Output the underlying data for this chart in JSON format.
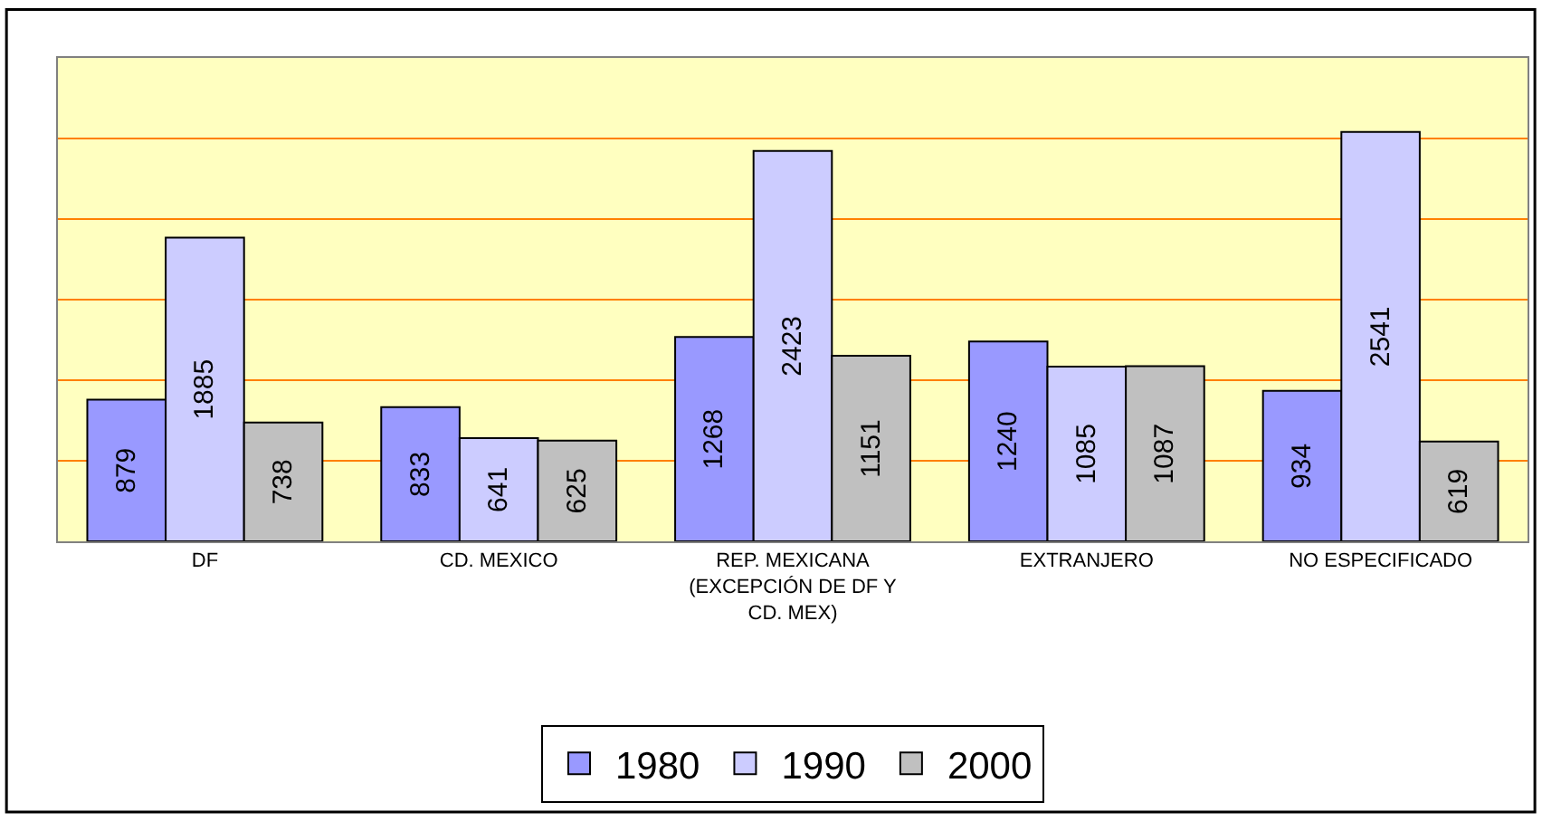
{
  "chart_data": {
    "type": "bar",
    "categories": [
      "DF",
      "CD. MEXICO",
      "REP. MEXICANA\n(EXCEPCIÓN DE DF Y\nCD. MEX)",
      "EXTRANJERO",
      "NO ESPECIFICADO"
    ],
    "series": [
      {
        "name": "1980",
        "color": "#9999ff",
        "values": [
          879,
          833,
          1268,
          1240,
          934
        ]
      },
      {
        "name": "1990",
        "color": "#ccccff",
        "values": [
          1885,
          641,
          2423,
          1085,
          2541
        ]
      },
      {
        "name": "2000",
        "color": "#c0c0c0",
        "values": [
          738,
          625,
          1151,
          1087,
          619
        ]
      }
    ],
    "ylim": [
      0,
      3000
    ],
    "yticks": [
      {
        "value": 0,
        "label": null
      },
      {
        "value": 500,
        "label": null
      },
      {
        "value": 1000,
        "label": null
      },
      {
        "value": 1500,
        "label": null
      },
      {
        "value": 2000,
        "label": null
      },
      {
        "value": 2500,
        "label": null
      },
      {
        "value": 3000,
        "label": null
      }
    ],
    "grid": "y",
    "legend": "bottom",
    "data_labels": true,
    "tick_labels": "x"
  }
}
